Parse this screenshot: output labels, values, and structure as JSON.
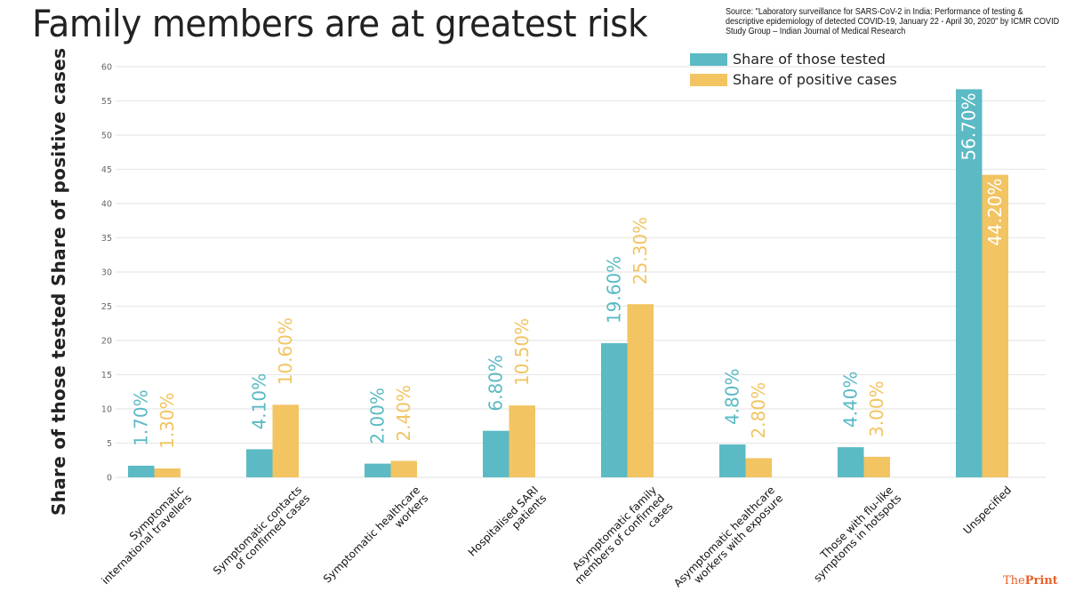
{
  "header": {
    "title": "Family members are at greatest risk",
    "source": "Source: \"Laboratory surveillance for SARS-CoV-2 in India: Performance of testing & descriptive epidemiology of detected COVID-19, January 22 - April 30, 2020\" by ICMR COVID Study Group – Indian Journal of Medical Research"
  },
  "branding": {
    "logo_regular": "The",
    "logo_bold": "Print",
    "color": "#e8622a"
  },
  "colors": {
    "tested": "#5bbac4",
    "positive": "#f2c462",
    "grid": "#e8e8e8"
  },
  "chart_data": {
    "type": "bar",
    "title": "Family members are at greatest risk",
    "xlabel": "",
    "ylabel": "Share of those tested  Share of positive cases",
    "ylim": [
      0,
      60
    ],
    "yticks": [
      0,
      5,
      10,
      15,
      20,
      25,
      30,
      35,
      40,
      45,
      50,
      55,
      60
    ],
    "grid": true,
    "legend_position": "top-right",
    "categories": [
      [
        "Symptomatic",
        "international travellers"
      ],
      [
        "Symptomatic contacts",
        "of confirmed cases"
      ],
      [
        "Symptomatic healthcare",
        "workers"
      ],
      [
        "Hospitalised SARI",
        "patients"
      ],
      [
        "Asymptomatic family",
        "members of confirmed",
        "cases"
      ],
      [
        "Asymptomatic healthcare",
        "workers with exposure"
      ],
      [
        "Those with flu-like",
        "symptoms in hotspots"
      ],
      [
        "Unspecified"
      ]
    ],
    "series": [
      {
        "name": "Share of those tested",
        "values": [
          1.7,
          4.1,
          2.0,
          6.8,
          19.6,
          4.8,
          4.4,
          56.7
        ],
        "labels": [
          "1.70%",
          "4.10%",
          "2.00%",
          "6.80%",
          "19.60%",
          "4.80%",
          "4.40%",
          "56.70%"
        ]
      },
      {
        "name": "Share of positive cases",
        "values": [
          1.3,
          10.6,
          2.4,
          10.5,
          25.3,
          2.8,
          3.0,
          44.2
        ],
        "labels": [
          "1.30%",
          "10.60%",
          "2.40%",
          "10.50%",
          "25.30%",
          "2.80%",
          "3.00%",
          "44.20%"
        ]
      }
    ]
  }
}
